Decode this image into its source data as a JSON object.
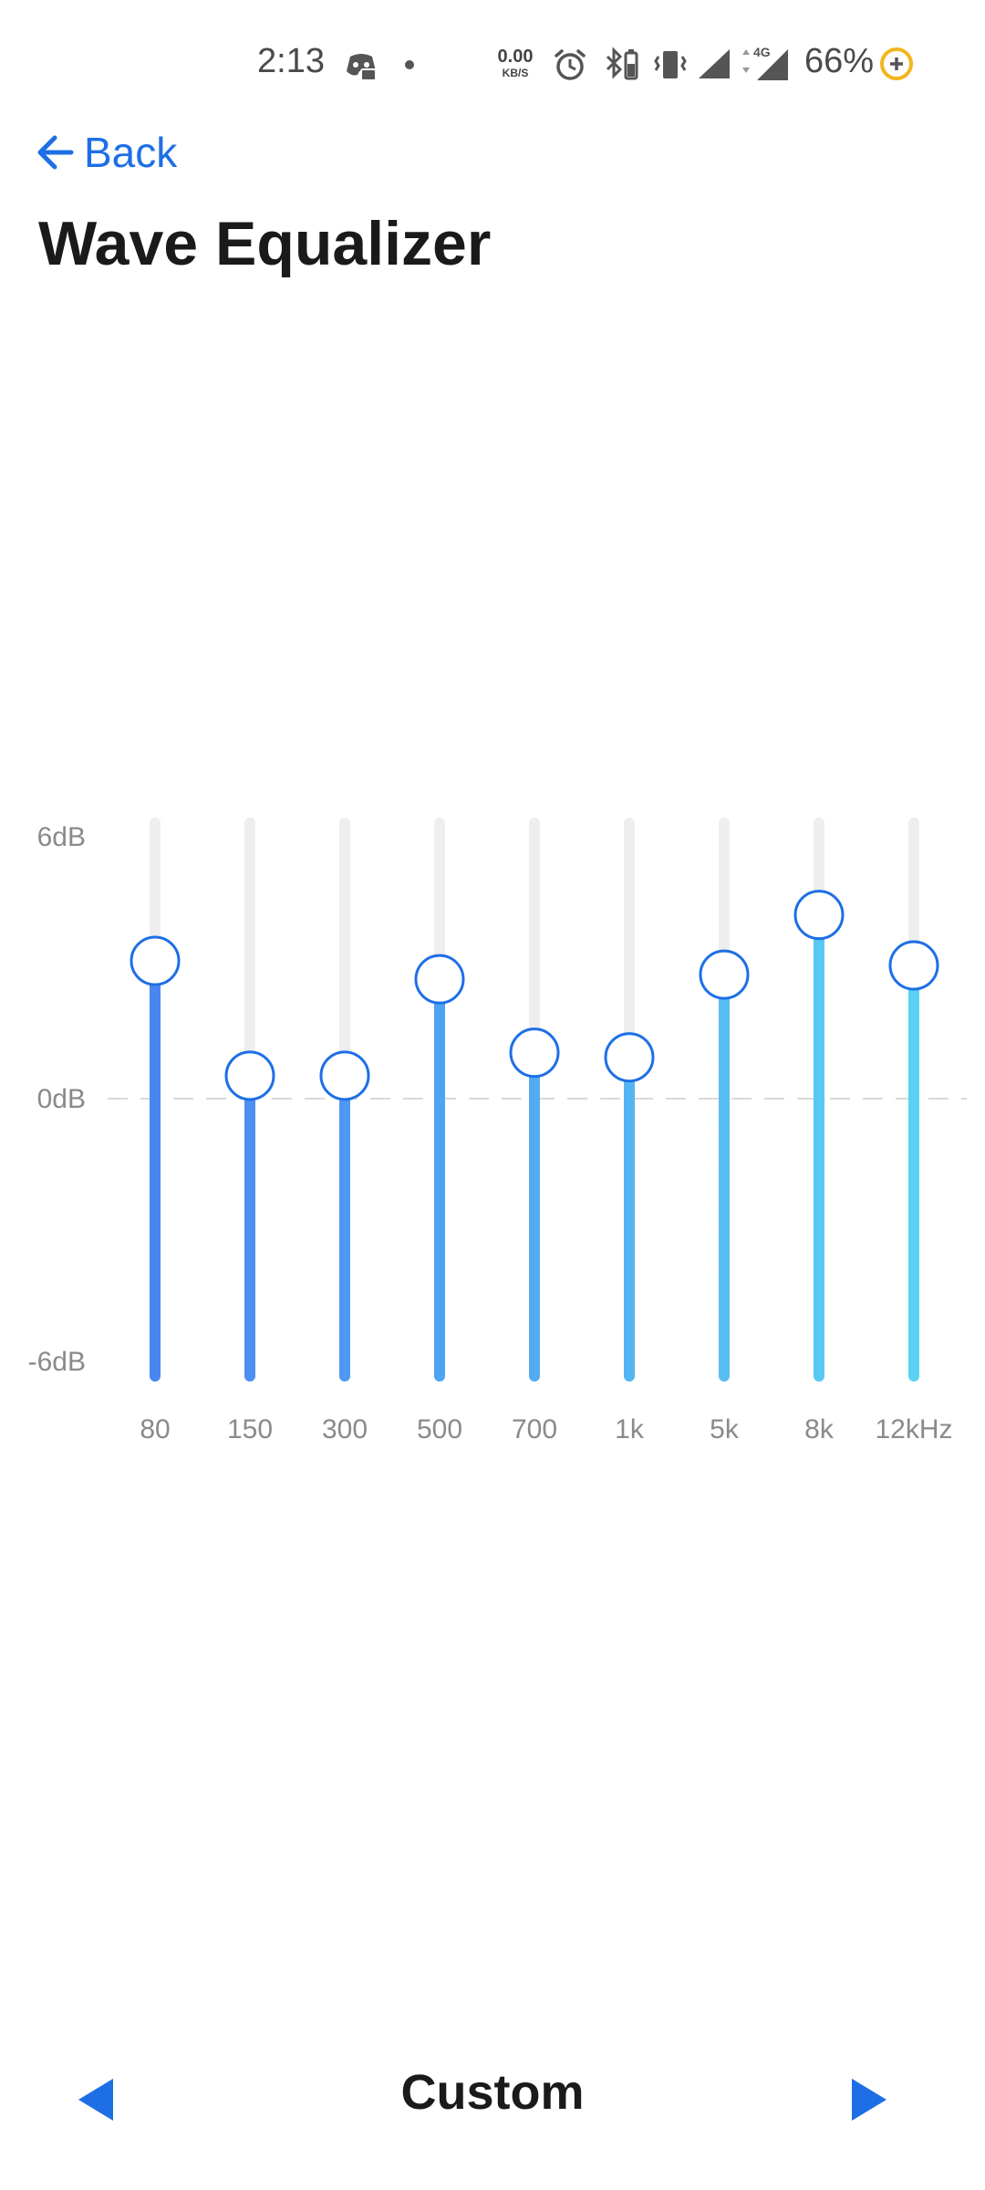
{
  "status_bar": {
    "time": "2:13",
    "net_speed_value": "0.00",
    "net_speed_unit": "KB/S",
    "network_type": "4G",
    "battery_percent": "66%",
    "icons": [
      "discord-icon",
      "notification-dot-icon",
      "alarm-icon",
      "bluetooth-battery-icon",
      "vibrate-icon",
      "signal-icon",
      "signal-4g-icon",
      "battery-saver-icon"
    ]
  },
  "header": {
    "back_label": "Back",
    "title": "Wave Equalizer"
  },
  "equalizer": {
    "db_labels": [
      "6dB",
      "0dB",
      "-6dB"
    ],
    "range_db": [
      -6,
      6
    ],
    "bands": [
      {
        "label": "80",
        "gain_db": 3.0
      },
      {
        "label": "150",
        "gain_db": 0.5
      },
      {
        "label": "300",
        "gain_db": 0.5
      },
      {
        "label": "500",
        "gain_db": 2.6
      },
      {
        "label": "700",
        "gain_db": 1.0
      },
      {
        "label": "1k",
        "gain_db": 0.9
      },
      {
        "label": "5k",
        "gain_db": 2.7
      },
      {
        "label": "8k",
        "gain_db": 4.0
      },
      {
        "label": "12kHz",
        "gain_db": 2.9
      }
    ],
    "colors": {
      "track": "#eeeeee",
      "fill_start": "#4a86f2",
      "fill_end": "#5bd1f2",
      "knob_border": "#1e6fe6",
      "zero_line": "#d9d9d9"
    }
  },
  "preset": {
    "name": "Custom",
    "prev_icon": "triangle-left-icon",
    "next_icon": "triangle-right-icon",
    "arrow_color": "#1e6fe6"
  }
}
